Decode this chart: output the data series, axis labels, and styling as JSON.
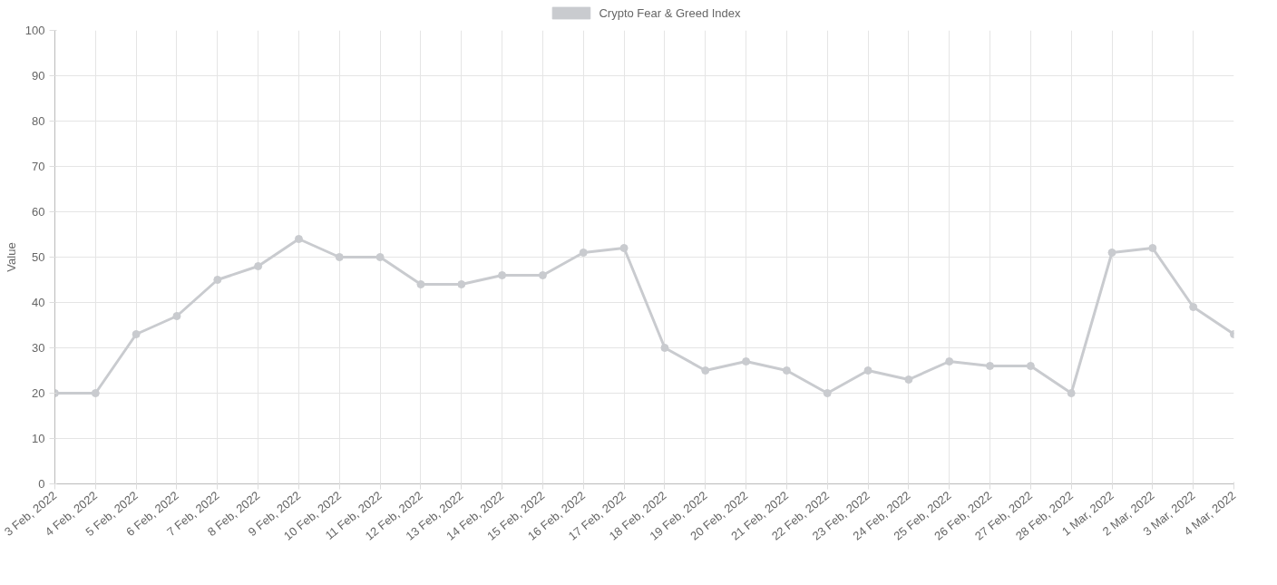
{
  "chart_data": {
    "type": "line",
    "categories": [
      "3 Feb, 2022",
      "4 Feb, 2022",
      "5 Feb, 2022",
      "6 Feb, 2022",
      "7 Feb, 2022",
      "8 Feb, 2022",
      "9 Feb, 2022",
      "10 Feb, 2022",
      "11 Feb, 2022",
      "12 Feb, 2022",
      "13 Feb, 2022",
      "14 Feb, 2022",
      "15 Feb, 2022",
      "16 Feb, 2022",
      "17 Feb, 2022",
      "18 Feb, 2022",
      "19 Feb, 2022",
      "20 Feb, 2022",
      "21 Feb, 2022",
      "22 Feb, 2022",
      "23 Feb, 2022",
      "24 Feb, 2022",
      "25 Feb, 2022",
      "26 Feb, 2022",
      "27 Feb, 2022",
      "28 Feb, 2022",
      "1 Mar, 2022",
      "2 Mar, 2022",
      "3 Mar, 2022",
      "4 Mar, 2022"
    ],
    "series": [
      {
        "name": "Crypto Fear & Greed Index",
        "color": "#c9cbcf",
        "values": [
          20,
          20,
          33,
          37,
          45,
          48,
          54,
          50,
          50,
          44,
          44,
          46,
          46,
          51,
          52,
          30,
          25,
          27,
          25,
          20,
          25,
          23,
          27,
          26,
          26,
          20,
          51,
          52,
          39,
          33
        ]
      }
    ],
    "ylabel": "Value",
    "ylim": [
      0,
      100
    ],
    "yticks": [
      0,
      10,
      20,
      30,
      40,
      50,
      60,
      70,
      80,
      90,
      100
    ],
    "grid": true,
    "legend": "top",
    "marker": "circle",
    "line_style": "solid"
  }
}
